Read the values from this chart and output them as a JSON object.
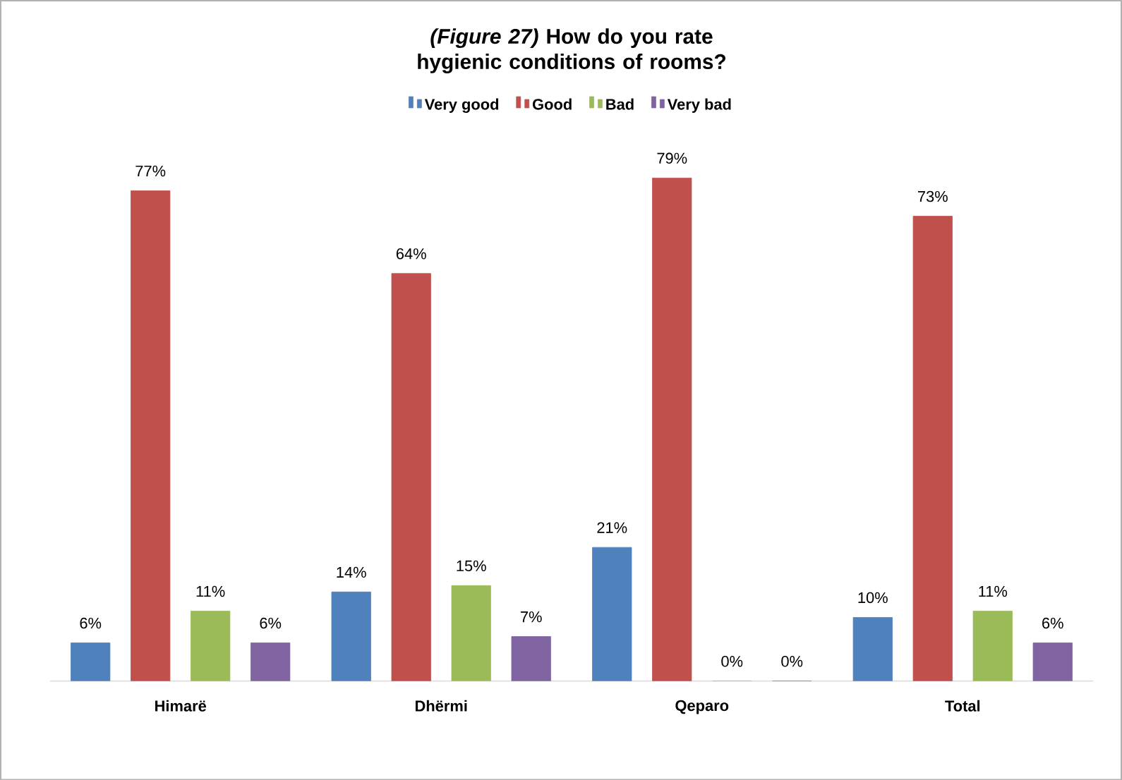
{
  "chart_data": {
    "type": "bar",
    "title": "*(Figure 27)* How do you rate hygienic conditions of rooms?",
    "categories": [
      "Himarë",
      "Dhërmi",
      "Qeparo",
      "Total"
    ],
    "series": [
      {
        "name": "Very good",
        "color": "#4f81bd",
        "values": [
          6,
          14,
          21,
          10
        ],
        "value_labels": [
          "6%",
          "14%",
          "21%",
          "10%"
        ]
      },
      {
        "name": "Good",
        "color": "#c0504d",
        "values": [
          77,
          64,
          79,
          73
        ],
        "value_labels": [
          "77%",
          "64%",
          "79%",
          "73%"
        ]
      },
      {
        "name": "Bad",
        "color": "#9bbb59",
        "values": [
          11,
          15,
          0,
          11
        ],
        "value_labels": [
          "11%",
          "15%",
          "0%",
          "11%"
        ]
      },
      {
        "name": "Very bad",
        "color": "#8064a2",
        "values": [
          6,
          7,
          0,
          6
        ],
        "value_labels": [
          "6%",
          "7%",
          "0%",
          "6%"
        ]
      }
    ],
    "legend": "top"
  }
}
